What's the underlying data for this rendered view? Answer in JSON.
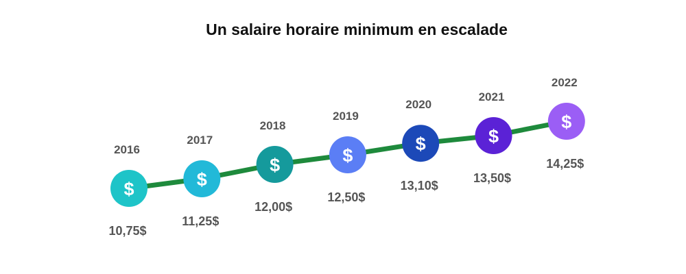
{
  "title": "Un salaire horaire minimum en escalade",
  "chart_data": {
    "type": "line",
    "title": "Un salaire horaire minimum en escalade",
    "categories": [
      "2016",
      "2017",
      "2018",
      "2019",
      "2020",
      "2021",
      "2022"
    ],
    "values": [
      10.75,
      11.25,
      12.0,
      12.5,
      13.1,
      13.5,
      14.25
    ],
    "value_labels": [
      "10,75$",
      "11,25$",
      "12,00$",
      "12,50$",
      "13,10$",
      "13,50$",
      "14,25$"
    ],
    "marker_symbol": "$",
    "ylim": [
      10.5,
      14.5
    ],
    "xlabel": "",
    "ylabel": "",
    "grid": false,
    "legend": "none",
    "colors": {
      "line": "#1e8a3c",
      "markers": [
        "#1ec4c8",
        "#22b9d8",
        "#159a9c",
        "#5b7ef5",
        "#1c49b8",
        "#5b22d6",
        "#9b5ef5"
      ]
    }
  }
}
